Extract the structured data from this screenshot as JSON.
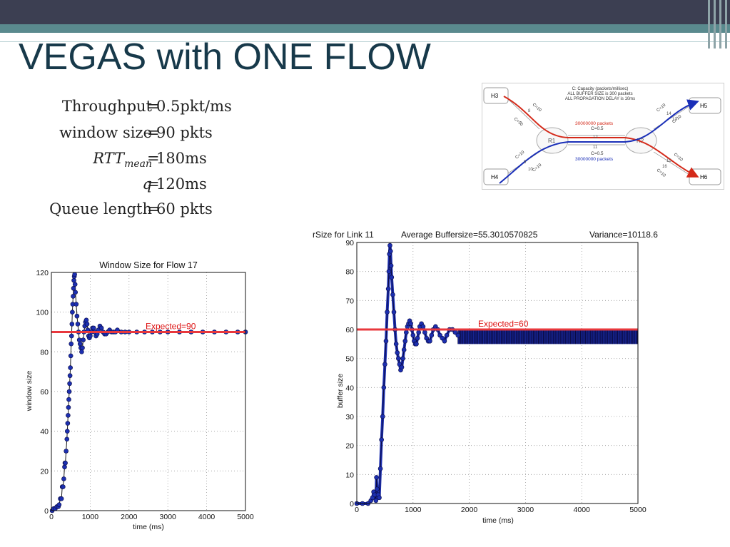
{
  "slide": {
    "title": "VEGAS with ONE FLOW"
  },
  "equations": [
    {
      "lhs": "Throughput",
      "rhs": "0.5pkt/ms"
    },
    {
      "lhs": "window size",
      "rhs": "90 pkts"
    },
    {
      "lhs": "RTT",
      "lhs_sub": "mean",
      "rhs": "180ms"
    },
    {
      "lhs": "q",
      "rhs": "120ms"
    },
    {
      "lhs": "Queue length",
      "rhs": "60 pkts"
    }
  ],
  "network": {
    "notes": [
      "C: Capacity (packets/millisec)",
      "ALL BUFFER SIZE is 300 packets",
      "ALL PROPAGATION DELAY is 10ms"
    ],
    "hosts": [
      "H3",
      "H4",
      "H5",
      "H6"
    ],
    "routers": [
      "R1",
      "R2"
    ],
    "red_flow_label": "30000000 packets",
    "blue_flow_label": "30000000 packets",
    "link_labels": [
      "C=10",
      "C=10",
      "C=10",
      "C=10",
      "C=10",
      "C=10",
      "C=10",
      "C=10",
      "C=0.5",
      "C=0.5"
    ],
    "link_ids": [
      "8",
      "7",
      "9",
      "10",
      "12",
      "11",
      "14",
      "13",
      "15",
      "16"
    ],
    "colors": {
      "red_flow": "#d42a1a",
      "blue_flow": "#1a2fb8"
    }
  },
  "chart_data": [
    {
      "type": "scatter",
      "title": "Window Size for Flow 17",
      "xlabel": "time (ms)",
      "ylabel": "window size",
      "xlim": [
        0,
        5000
      ],
      "ylim": [
        0,
        120
      ],
      "xticks": [
        0,
        1000,
        2000,
        3000,
        4000,
        5000
      ],
      "yticks": [
        0,
        20,
        40,
        60,
        80,
        100,
        120
      ],
      "grid": true,
      "expected": {
        "value": 90,
        "label": "Expected=90",
        "color": "#e8383d"
      },
      "series": [
        {
          "color": "#1c2fb0",
          "line_color": "#1a1a1a",
          "x": [
            20,
            60,
            100,
            140,
            180,
            200,
            230,
            260,
            280,
            300,
            320,
            340,
            350,
            360,
            380,
            400,
            410,
            420,
            430,
            440,
            450,
            460,
            470,
            480,
            490,
            500,
            510,
            520,
            530,
            540,
            550,
            560,
            570,
            580,
            590,
            600,
            610,
            620,
            640,
            660,
            680,
            700,
            720,
            740,
            760,
            780,
            800,
            820,
            840,
            860,
            880,
            900,
            920,
            940,
            960,
            980,
            1000,
            1030,
            1060,
            1090,
            1120,
            1150,
            1180,
            1210,
            1250,
            1290,
            1330,
            1370,
            1410,
            1450,
            1500,
            1550,
            1600,
            1650,
            1700,
            1800,
            1900,
            2000,
            2200,
            2400,
            2600,
            2800,
            3000,
            3300,
            3600,
            3900,
            4200,
            4500,
            4800,
            5000
          ],
          "y": [
            0,
            1,
            1,
            2,
            2,
            3,
            6,
            6,
            12,
            12,
            16,
            22,
            24,
            24,
            30,
            36,
            40,
            44,
            48,
            52,
            56,
            60,
            64,
            68,
            72,
            78,
            84,
            88,
            94,
            100,
            104,
            108,
            112,
            116,
            118,
            119,
            114,
            110,
            104,
            98,
            94,
            90,
            86,
            84,
            82,
            80,
            82,
            86,
            90,
            93,
            95,
            96,
            94,
            91,
            88,
            87,
            88,
            90,
            92,
            92,
            90,
            88,
            89,
            91,
            93,
            92,
            90,
            89,
            89,
            90,
            91,
            90,
            90,
            90,
            91,
            90,
            90,
            90,
            90,
            90,
            90,
            90,
            90,
            90,
            90,
            90,
            90,
            90,
            90,
            90
          ]
        }
      ]
    },
    {
      "type": "scatter",
      "title": "rSize for Link 11",
      "title_extra": [
        "Average Buffersize=55.3010570825",
        "Variance=10118.6"
      ],
      "xlabel": "time (ms)",
      "ylabel": "buffer size",
      "xlim": [
        0,
        5000
      ],
      "ylim": [
        0,
        90
      ],
      "xticks": [
        0,
        1000,
        2000,
        3000,
        4000,
        5000
      ],
      "yticks": [
        0,
        10,
        20,
        30,
        40,
        50,
        60,
        70,
        80,
        90
      ],
      "grid": true,
      "expected": {
        "value": 60,
        "label": "Expected=60",
        "color": "#e8383d"
      },
      "band": {
        "x": [
          1800,
          5000
        ],
        "low": 55,
        "high": 60
      },
      "series": [
        {
          "color": "#1c2fb0",
          "x": [
            0,
            100,
            200,
            250,
            280,
            300,
            320,
            340,
            350,
            360,
            380,
            400,
            420,
            440,
            460,
            480,
            500,
            520,
            540,
            560,
            570,
            580,
            590,
            600,
            610,
            620,
            640,
            660,
            680,
            700,
            720,
            740,
            760,
            780,
            800,
            820,
            840,
            860,
            880,
            900,
            920,
            940,
            960,
            980,
            1000,
            1020,
            1040,
            1060,
            1080,
            1100,
            1120,
            1150,
            1180,
            1210,
            1240,
            1270,
            1300,
            1330,
            1360,
            1400,
            1440,
            1480,
            1520,
            1560,
            1600,
            1650,
            1700,
            1750,
            1800
          ],
          "y": [
            0,
            0,
            0,
            1,
            2,
            4,
            3,
            1,
            9,
            5,
            3,
            2,
            12,
            22,
            30,
            40,
            48,
            56,
            66,
            74,
            80,
            86,
            89,
            87,
            82,
            78,
            72,
            66,
            60,
            55,
            52,
            50,
            48,
            46,
            47,
            50,
            53,
            56,
            59,
            61,
            62,
            63,
            62,
            60,
            58,
            56,
            55,
            55,
            57,
            59,
            61,
            62,
            61,
            59,
            57,
            56,
            56,
            58,
            60,
            61,
            60,
            58,
            57,
            56,
            58,
            60,
            60,
            59,
            58
          ]
        }
      ]
    }
  ]
}
